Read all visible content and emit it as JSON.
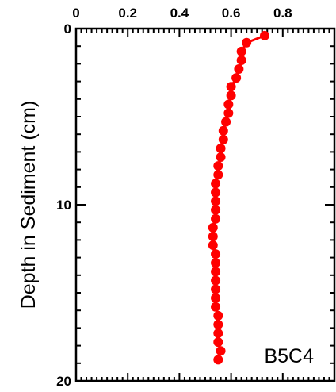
{
  "chart_data": {
    "type": "scatter",
    "title": "",
    "xlabel": "",
    "ylabel": "Depth in Sediment (cm)",
    "annotation": "B5C4",
    "xlim": [
      0,
      1
    ],
    "ylim": [
      0,
      20
    ],
    "y_inverted": true,
    "x_axis_position": "top",
    "x_ticks": [
      "0",
      "0.2",
      "0.4",
      "0.6",
      "0.8"
    ],
    "y_ticks": [
      "0",
      "10",
      "20"
    ],
    "grid": false,
    "legend": "none",
    "marker_color": "#ff0000",
    "series": [
      {
        "x": [
          0.73,
          0.66,
          0.64,
          0.64,
          0.63,
          0.62,
          0.6,
          0.6,
          0.59,
          0.59,
          0.58,
          0.57,
          0.57,
          0.56,
          0.56,
          0.55,
          0.55,
          0.54,
          0.54,
          0.54,
          0.54,
          0.54,
          0.53,
          0.53,
          0.53,
          0.54,
          0.54,
          0.54,
          0.54,
          0.54,
          0.54,
          0.54,
          0.55,
          0.55,
          0.55,
          0.55,
          0.56,
          0.55
        ],
        "y": [
          0.4,
          0.8,
          1.3,
          1.8,
          2.3,
          2.8,
          3.3,
          3.8,
          4.3,
          4.8,
          5.3,
          5.8,
          6.3,
          6.8,
          7.3,
          7.8,
          8.3,
          8.8,
          9.3,
          9.8,
          10.3,
          10.8,
          11.3,
          11.8,
          12.3,
          12.8,
          13.3,
          13.8,
          14.3,
          14.8,
          15.3,
          15.8,
          16.3,
          16.8,
          17.3,
          17.8,
          18.3,
          18.8
        ]
      }
    ]
  }
}
